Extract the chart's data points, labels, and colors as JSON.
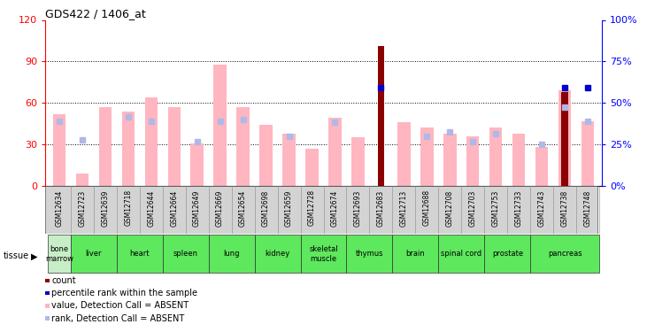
{
  "title": "GDS422 / 1406_at",
  "samples": [
    "GSM12634",
    "GSM12723",
    "GSM12639",
    "GSM12718",
    "GSM12644",
    "GSM12664",
    "GSM12649",
    "GSM12669",
    "GSM12654",
    "GSM12698",
    "GSM12659",
    "GSM12728",
    "GSM12674",
    "GSM12693",
    "GSM12683",
    "GSM12713",
    "GSM12688",
    "GSM12708",
    "GSM12703",
    "GSM12753",
    "GSM12733",
    "GSM12743",
    "GSM12738",
    "GSM12748"
  ],
  "tissues": [
    {
      "name": "bone\nmarrow",
      "start": 0,
      "end": 1,
      "color": "#c8eec8"
    },
    {
      "name": "liver",
      "start": 1,
      "end": 3,
      "color": "#90EE90"
    },
    {
      "name": "heart",
      "start": 3,
      "end": 5,
      "color": "#90EE90"
    },
    {
      "name": "spleen",
      "start": 5,
      "end": 7,
      "color": "#90EE90"
    },
    {
      "name": "lung",
      "start": 7,
      "end": 9,
      "color": "#90EE90"
    },
    {
      "name": "kidney",
      "start": 9,
      "end": 11,
      "color": "#90EE90"
    },
    {
      "name": "skeletal\nmuscle",
      "start": 11,
      "end": 13,
      "color": "#90EE90"
    },
    {
      "name": "thymus",
      "start": 13,
      "end": 15,
      "color": "#90EE90"
    },
    {
      "name": "brain",
      "start": 15,
      "end": 17,
      "color": "#90EE90"
    },
    {
      "name": "spinal cord",
      "start": 17,
      "end": 19,
      "color": "#90EE90"
    },
    {
      "name": "prostate",
      "start": 19,
      "end": 21,
      "color": "#90EE90"
    },
    {
      "name": "pancreas",
      "start": 21,
      "end": 24,
      "color": "#90EE90"
    }
  ],
  "value_absent": [
    52,
    9,
    57,
    54,
    64,
    57,
    31,
    88,
    57,
    44,
    38,
    27,
    49,
    35,
    0,
    46,
    42,
    38,
    36,
    42,
    38,
    28,
    69,
    47
  ],
  "rank_absent": [
    47,
    33,
    0,
    50,
    47,
    0,
    32,
    47,
    48,
    0,
    36,
    0,
    46,
    0,
    0,
    0,
    36,
    39,
    32,
    38,
    0,
    30,
    57,
    47
  ],
  "count_red": [
    0,
    0,
    0,
    0,
    0,
    0,
    0,
    0,
    0,
    0,
    0,
    0,
    0,
    0,
    101,
    0,
    0,
    0,
    0,
    0,
    0,
    0,
    68,
    0
  ],
  "percentile_blue": [
    0,
    0,
    0,
    0,
    0,
    0,
    0,
    0,
    0,
    0,
    0,
    0,
    0,
    0,
    59,
    0,
    0,
    0,
    0,
    0,
    0,
    0,
    59,
    59
  ],
  "ylim_left": [
    0,
    120
  ],
  "ylim_right": [
    0,
    100
  ],
  "yticks_left": [
    0,
    30,
    60,
    90,
    120
  ],
  "yticks_right": [
    0,
    25,
    50,
    75,
    100
  ],
  "ytick_labels_right": [
    "0%",
    "25%",
    "50%",
    "75%",
    "100%"
  ],
  "color_value_absent": "#FFB6C1",
  "color_rank_absent": "#b0b8e8",
  "color_count": "#8B0000",
  "color_percentile": "#0000cc",
  "background_color": "#ffffff",
  "left_axis_color": "red",
  "right_axis_color": "blue",
  "sample_label_color": "#333333",
  "gsm_bg_color": "#d3d3d3"
}
